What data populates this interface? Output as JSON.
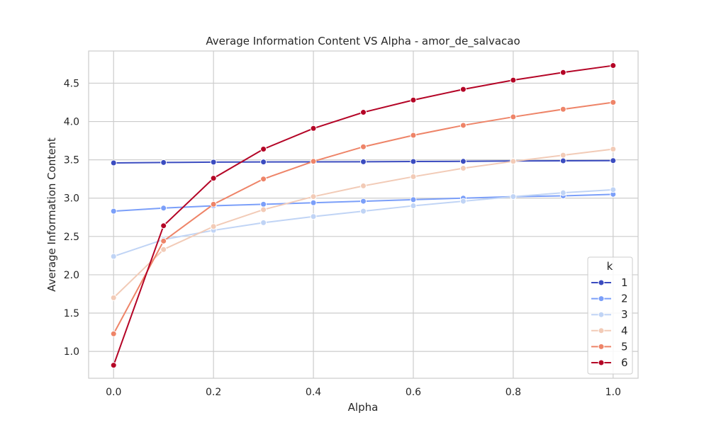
{
  "chart_data": {
    "type": "line",
    "title": "Average Information Content VS Alpha - amor_de_salvacao",
    "xlabel": "Alpha",
    "ylabel": "Average Information Content",
    "xlim": [
      -0.05,
      1.05
    ],
    "ylim": [
      0.65,
      4.92
    ],
    "xticks": [
      "0.0",
      "0.2",
      "0.4",
      "0.6",
      "0.8",
      "1.0"
    ],
    "yticks": [
      "1.0",
      "1.5",
      "2.0",
      "2.5",
      "3.0",
      "3.5",
      "4.0",
      "4.5"
    ],
    "grid": true,
    "legend": {
      "title": "k",
      "placement": "lower-right"
    },
    "x": [
      0.0,
      0.1,
      0.2,
      0.3,
      0.4,
      0.5,
      0.6,
      0.7,
      0.8,
      0.9,
      1.0
    ],
    "series": [
      {
        "name": "1",
        "color": "#3b4cc0",
        "values": [
          3.46,
          3.465,
          3.47,
          3.472,
          3.474,
          3.475,
          3.478,
          3.48,
          3.485,
          3.487,
          3.49
        ]
      },
      {
        "name": "2",
        "color": "#7b9ff9",
        "values": [
          2.83,
          2.87,
          2.9,
          2.92,
          2.94,
          2.96,
          2.98,
          3.0,
          3.02,
          3.03,
          3.05
        ]
      },
      {
        "name": "3",
        "color": "#c0d4f5",
        "values": [
          2.24,
          2.46,
          2.58,
          2.68,
          2.76,
          2.83,
          2.9,
          2.96,
          3.02,
          3.07,
          3.11
        ]
      },
      {
        "name": "4",
        "color": "#f2cbb7",
        "values": [
          1.7,
          2.33,
          2.63,
          2.85,
          3.02,
          3.16,
          3.28,
          3.39,
          3.48,
          3.56,
          3.64
        ]
      },
      {
        "name": "5",
        "color": "#ee8468",
        "values": [
          1.23,
          2.44,
          2.92,
          3.25,
          3.48,
          3.67,
          3.82,
          3.95,
          4.06,
          4.16,
          4.25
        ]
      },
      {
        "name": "6",
        "color": "#b40426",
        "values": [
          0.82,
          2.64,
          3.26,
          3.64,
          3.91,
          4.12,
          4.28,
          4.42,
          4.54,
          4.64,
          4.73
        ]
      }
    ]
  }
}
